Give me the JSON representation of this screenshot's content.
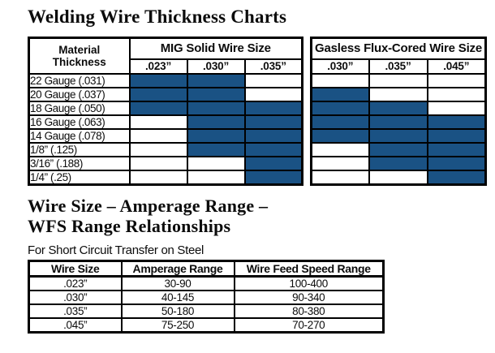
{
  "page": {
    "title": "Welding Wire Thickness Charts",
    "section2_title_line1": "Wire Size – Amperage Range –",
    "section2_title_line2": "WFS Range Relationships",
    "section2_caption": "For Short Circuit Transfer on Steel"
  },
  "colors": {
    "cell_fill_blue": "#1a5284",
    "border": "#000000",
    "background": "#ffffff"
  },
  "thickness_chart": {
    "row_header_line1": "Material",
    "row_header_line2": "Thickness",
    "groups": [
      {
        "title": "MIG Solid Wire Size",
        "columns": [
          ".023”",
          ".030”",
          ".035”"
        ]
      },
      {
        "title": "Gasless Flux-Cored Wire Size",
        "columns": [
          ".030”",
          ".035”",
          ".045”"
        ]
      }
    ],
    "rows": [
      {
        "label": "22 Gauge (.031)",
        "mig": [
          1,
          1,
          0
        ],
        "gasless": [
          0,
          0,
          0
        ]
      },
      {
        "label": "20 Gauge (.037)",
        "mig": [
          1,
          1,
          0
        ],
        "gasless": [
          1,
          0,
          0
        ]
      },
      {
        "label": "18 Gauge (.050)",
        "mig": [
          1,
          1,
          1
        ],
        "gasless": [
          1,
          1,
          0
        ]
      },
      {
        "label": "16 Gauge (.063)",
        "mig": [
          0,
          1,
          1
        ],
        "gasless": [
          1,
          1,
          1
        ]
      },
      {
        "label": "14 Gauge (.078)",
        "mig": [
          0,
          1,
          1
        ],
        "gasless": [
          1,
          1,
          1
        ]
      },
      {
        "label": "1/8” (.125)",
        "mig": [
          0,
          1,
          1
        ],
        "gasless": [
          0,
          1,
          1
        ]
      },
      {
        "label": "3/16” (.188)",
        "mig": [
          0,
          0,
          1
        ],
        "gasless": [
          0,
          1,
          1
        ]
      },
      {
        "label": "1/4” (.25)",
        "mig": [
          0,
          0,
          1
        ],
        "gasless": [
          0,
          0,
          1
        ]
      }
    ]
  },
  "amperage_table": {
    "headers": [
      "Wire Size",
      "Amperage Range",
      "Wire Feed Speed Range"
    ],
    "rows": [
      [
        ".023”",
        "30-90",
        "100-400"
      ],
      [
        ".030”",
        "40-145",
        "90-340"
      ],
      [
        ".035”",
        "50-180",
        "80-380"
      ],
      [
        ".045”",
        "75-250",
        "70-270"
      ]
    ]
  }
}
